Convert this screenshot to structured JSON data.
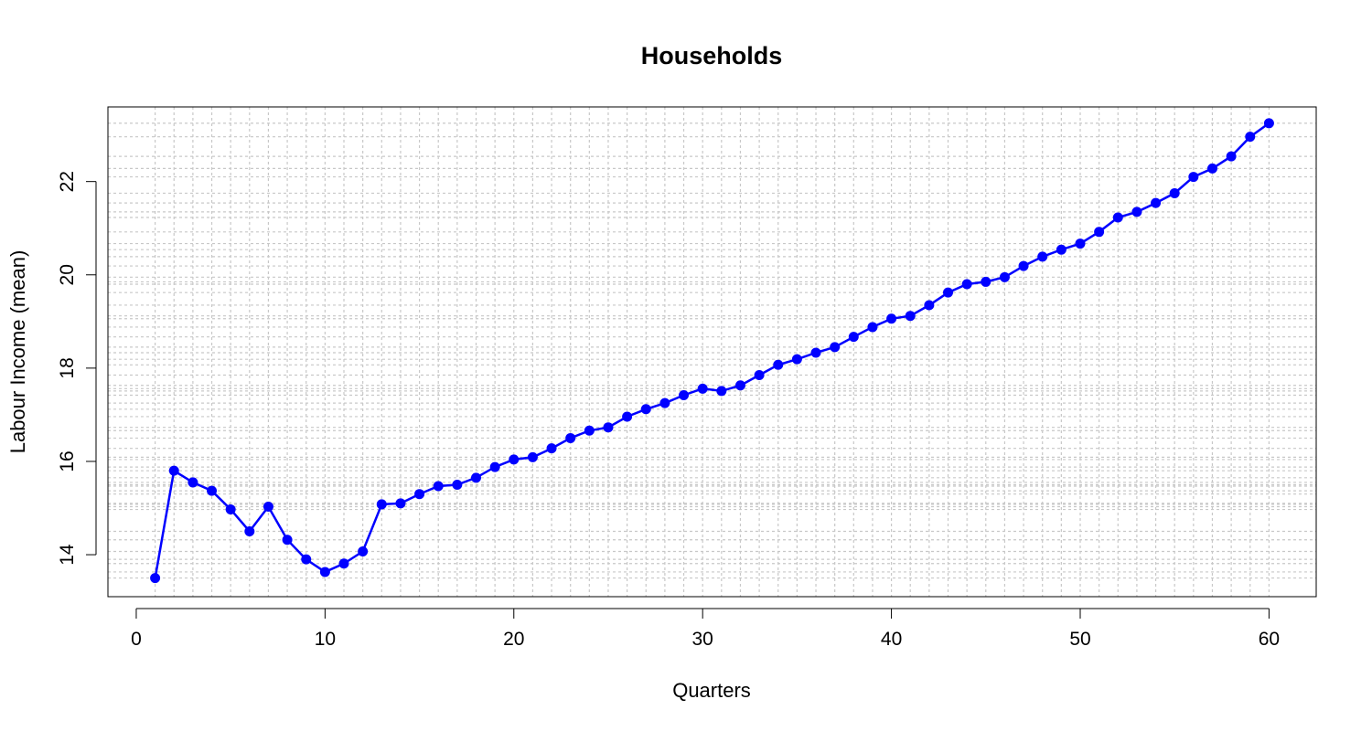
{
  "chart_data": {
    "type": "line",
    "title": "Households",
    "xlabel": "Quarters",
    "ylabel": "Labour Income (mean)",
    "xlim": [
      -1.5,
      62.5
    ],
    "ylim": [
      13.1,
      23.6
    ],
    "xticks": [
      0,
      10,
      20,
      30,
      40,
      50,
      60
    ],
    "yticks": [
      14,
      16,
      18,
      20,
      22
    ],
    "grid": true,
    "series_color": "#0000ff",
    "series": [
      {
        "x": [
          1,
          2,
          3,
          4,
          5,
          6,
          7,
          8,
          9,
          10,
          11,
          12,
          13,
          14,
          15,
          16,
          17,
          18,
          19,
          20,
          21,
          22,
          23,
          24,
          25,
          26,
          27,
          28,
          29,
          30,
          31,
          32,
          33,
          34,
          35,
          36,
          37,
          38,
          39,
          40,
          41,
          42,
          43,
          44,
          45,
          46,
          47,
          48,
          49,
          50,
          51,
          52,
          53,
          54,
          55,
          56,
          57,
          58,
          59,
          60
        ],
        "values": [
          13.5,
          15.8,
          15.55,
          15.37,
          14.97,
          14.5,
          15.03,
          14.32,
          13.9,
          13.63,
          13.81,
          14.07,
          15.08,
          15.1,
          15.3,
          15.47,
          15.5,
          15.65,
          15.88,
          16.04,
          16.09,
          16.28,
          16.5,
          16.66,
          16.73,
          16.96,
          17.12,
          17.25,
          17.42,
          17.56,
          17.51,
          17.63,
          17.85,
          18.07,
          18.19,
          18.33,
          18.45,
          18.67,
          18.88,
          19.06,
          19.12,
          19.35,
          19.62,
          19.8,
          19.85,
          19.95,
          20.19,
          20.39,
          20.54,
          20.67,
          20.92,
          21.23,
          21.35,
          21.54,
          21.75,
          22.1,
          22.28,
          22.54,
          22.96,
          23.25
        ]
      }
    ]
  }
}
